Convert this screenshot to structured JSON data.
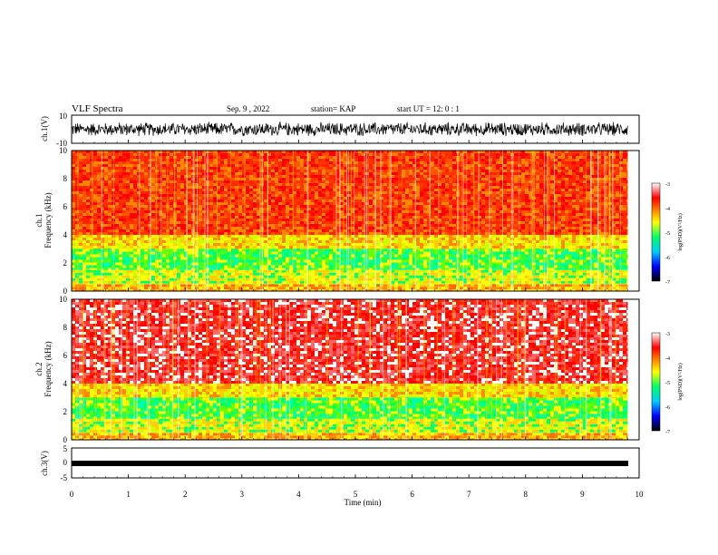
{
  "header": {
    "title": "VLF Spectra",
    "date": "Sep. 9 , 2022",
    "station": "station= KAP",
    "start_ut": "start  UT =  12: 0  : 1"
  },
  "chart_data": [
    {
      "type": "line",
      "panel": "ch1_waveform",
      "ylabel": "ch.1(V)",
      "ylim": [
        -10,
        10
      ],
      "yticks": [
        "10",
        "-10"
      ],
      "xlim": [
        0,
        10
      ],
      "approx_center": 0,
      "approx_amplitude": 5,
      "color": "#000000"
    },
    {
      "type": "heatmap",
      "panel": "ch1_spectrogram",
      "ylabel_channel": "ch.1",
      "ylabel": "Frequency (kHz)",
      "ylim": [
        0,
        10
      ],
      "yticks": [
        "0",
        "2",
        "4",
        "6",
        "8",
        "10"
      ],
      "xlim": [
        0,
        9.8
      ],
      "bands": [
        {
          "from": 0.0,
          "to": 0.5,
          "level": "orange/yellow"
        },
        {
          "from": 0.5,
          "to": 1.5,
          "level": "yellow/green"
        },
        {
          "from": 1.5,
          "to": 3.0,
          "level": "green"
        },
        {
          "from": 3.0,
          "to": 4.0,
          "level": "yellow"
        },
        {
          "from": 4.0,
          "to": 10.0,
          "level": "red/orange"
        }
      ],
      "colorbar": {
        "label": "log(PSD)(V²/Hz)",
        "ticks": [
          "-3",
          "-4",
          "-5",
          "-6",
          "-7"
        ],
        "range": [
          -7,
          -3
        ]
      }
    },
    {
      "type": "heatmap",
      "panel": "ch2_spectrogram",
      "ylabel_channel": "ch.2",
      "ylabel": "Frequency (kHz)",
      "ylim": [
        0,
        10
      ],
      "yticks": [
        "0",
        "2",
        "4",
        "6",
        "8",
        "10"
      ],
      "xlim": [
        0,
        9.8
      ],
      "bands": [
        {
          "from": 0.0,
          "to": 0.5,
          "level": "orange/yellow"
        },
        {
          "from": 0.5,
          "to": 1.5,
          "level": "yellow/green"
        },
        {
          "from": 1.5,
          "to": 3.0,
          "level": "green"
        },
        {
          "from": 3.0,
          "to": 4.0,
          "level": "yellow"
        },
        {
          "from": 4.0,
          "to": 10.0,
          "level": "red/white"
        }
      ],
      "colorbar": {
        "label": "log(PSD)(V²/Hz)",
        "ticks": [
          "-3",
          "-4",
          "-5",
          "-6",
          "-7"
        ],
        "range": [
          -7,
          -3
        ]
      }
    },
    {
      "type": "line",
      "panel": "ch3_waveform",
      "ylabel": "ch.3(V)",
      "ylim": [
        -5,
        5
      ],
      "yticks": [
        "5",
        "0",
        "-5"
      ],
      "xlim": [
        0,
        10
      ],
      "approx_center": -1.5,
      "approx_amplitude": 0.5,
      "color": "#000000"
    }
  ],
  "x_axis": {
    "label": "Time (min)",
    "ticks": [
      "0",
      "1",
      "2",
      "3",
      "4",
      "5",
      "6",
      "7",
      "8",
      "9",
      "10"
    ],
    "range": [
      0,
      10
    ]
  },
  "colors": {
    "colormap": [
      "#000000",
      "#0000ff",
      "#00ccff",
      "#00ff66",
      "#ffff00",
      "#ff8800",
      "#ff0000",
      "#ffffff"
    ]
  }
}
